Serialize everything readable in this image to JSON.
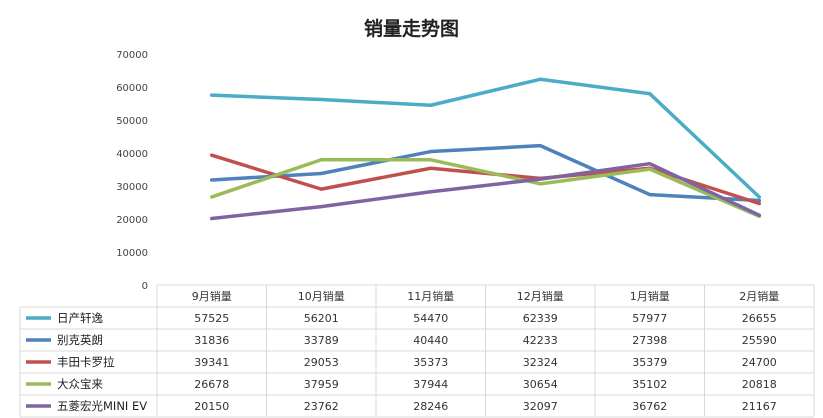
{
  "chart_data": {
    "type": "line",
    "title": "销量走势图",
    "categories": [
      "9月销量",
      "10月销量",
      "11月销量",
      "12月销量",
      "1月销量",
      "2月销量"
    ],
    "ylim": [
      0,
      70000
    ],
    "yticks": [
      0,
      10000,
      20000,
      30000,
      40000,
      50000,
      60000,
      70000
    ],
    "grid": false,
    "legend": "data-table",
    "series": [
      {
        "name": "日产轩逸",
        "color": "#4bacc6",
        "values": [
          57525,
          56201,
          54470,
          62339,
          57977,
          26655
        ]
      },
      {
        "name": "别克英朗",
        "color": "#4f81bd",
        "values": [
          31836,
          33789,
          40440,
          42233,
          27398,
          25590
        ]
      },
      {
        "name": "丰田卡罗拉",
        "color": "#c0504d",
        "values": [
          39341,
          29053,
          35373,
          32324,
          35379,
          24700
        ]
      },
      {
        "name": "大众宝来",
        "color": "#9bbb59",
        "values": [
          26678,
          37959,
          37944,
          30654,
          35102,
          20818
        ]
      },
      {
        "name": "五菱宏光MINI EV",
        "color": "#8064a2",
        "values": [
          20150,
          23762,
          28246,
          32097,
          36762,
          21167
        ]
      }
    ]
  }
}
